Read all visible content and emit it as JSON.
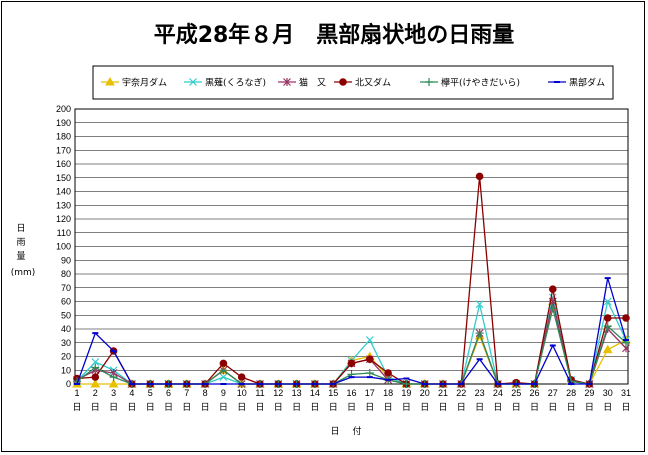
{
  "chart_data": {
    "type": "line",
    "title": "平成28年８月　黒部扇状地の日雨量",
    "ylabel_chars": [
      "日",
      "雨",
      "量"
    ],
    "yunit": "(mm)",
    "xlabel_chars": [
      "日",
      "付"
    ],
    "x_suffix": "日",
    "ylim": [
      0,
      200
    ],
    "ytick_step": 10,
    "x": [
      1,
      2,
      3,
      4,
      5,
      6,
      7,
      8,
      9,
      10,
      11,
      12,
      13,
      14,
      15,
      16,
      17,
      18,
      19,
      20,
      21,
      22,
      23,
      24,
      25,
      26,
      27,
      28,
      29,
      30,
      31
    ],
    "grid": true,
    "legend_position": "top",
    "series": [
      {
        "name": "宇奈月ダム",
        "color": "#e8c000",
        "marker": "triangle",
        "values": [
          0,
          0,
          0,
          0,
          0,
          0,
          0,
          0,
          10,
          0,
          0,
          0,
          0,
          0,
          0,
          17,
          20,
          5,
          0,
          0,
          0,
          0,
          35,
          0,
          0,
          0,
          60,
          2,
          0,
          25,
          32
        ]
      },
      {
        "name": "黒薙(くろなぎ)",
        "color": "#33cccc",
        "marker": "x",
        "values": [
          2,
          16,
          10,
          0,
          0,
          0,
          0,
          0,
          5,
          0,
          0,
          0,
          0,
          0,
          0,
          17,
          32,
          5,
          0,
          0,
          0,
          0,
          58,
          0,
          0,
          0,
          63,
          3,
          0,
          60,
          32
        ]
      },
      {
        "name": "猫　又",
        "color": "#993366",
        "marker": "asterisk",
        "values": [
          3,
          10,
          8,
          0,
          0,
          0,
          0,
          0,
          10,
          0,
          0,
          0,
          0,
          0,
          0,
          15,
          18,
          3,
          0,
          0,
          0,
          0,
          37,
          0,
          0,
          0,
          60,
          2,
          0,
          40,
          26
        ]
      },
      {
        "name": "北又ダム",
        "color": "#8b0000",
        "marker": "circle",
        "values": [
          4,
          5,
          24,
          0,
          0,
          0,
          0,
          0,
          15,
          5,
          0,
          0,
          0,
          0,
          0,
          15,
          18,
          8,
          0,
          0,
          0,
          0,
          151,
          0,
          1,
          0,
          69,
          3,
          0,
          48,
          48
        ]
      },
      {
        "name": "欅平(けやきだいら)",
        "color": "#2e8b57",
        "marker": "plus",
        "values": [
          2,
          12,
          5,
          0,
          0,
          0,
          0,
          0,
          10,
          0,
          0,
          0,
          0,
          0,
          0,
          7,
          8,
          3,
          0,
          0,
          0,
          0,
          37,
          0,
          0,
          0,
          55,
          2,
          0,
          42,
          30
        ]
      },
      {
        "name": "黒部ダム",
        "color": "#0000cc",
        "marker": "dash",
        "values": [
          0,
          37,
          24,
          0,
          0,
          0,
          0,
          0,
          0,
          0,
          0,
          0,
          0,
          0,
          0,
          5,
          5,
          3,
          4,
          0,
          0,
          0,
          18,
          0,
          0,
          0,
          28,
          0,
          0,
          77,
          32
        ]
      }
    ]
  }
}
